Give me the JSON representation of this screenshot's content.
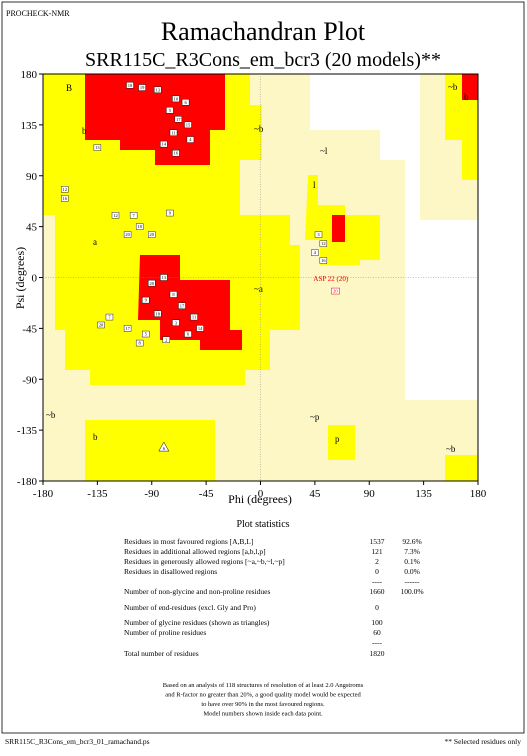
{
  "header": "PROCHECK-NMR",
  "chart_data": {
    "type": "scatter",
    "title": "Ramachandran Plot",
    "subtitle": "SRR115C_R3Cons_em_bcr3 (20 models)**",
    "x_label": "Phi (degrees)",
    "y_label": "Psi (degrees)",
    "xlim": [
      -180,
      180
    ],
    "ylim": [
      -180,
      180
    ],
    "xticks": [
      -180,
      -135,
      -90,
      -45,
      0,
      45,
      90,
      135,
      180
    ],
    "yticks": [
      -180,
      -135,
      -90,
      -45,
      0,
      45,
      90,
      135,
      180
    ],
    "x": [
      -108,
      -98,
      -85,
      -70,
      -62,
      -75,
      -68,
      -60,
      -72,
      -58,
      -80,
      -70,
      -135,
      -162,
      -162,
      -120,
      -105,
      -100,
      -90,
      -110,
      -75,
      -90,
      -80,
      -72,
      -65,
      -95,
      -85,
      -70,
      -55,
      -60,
      -78,
      -95,
      -50,
      -125,
      -132,
      -110,
      -100,
      48,
      52,
      45,
      52
    ],
    "y": [
      170,
      168,
      166,
      158,
      155,
      148,
      140,
      135,
      128,
      122,
      118,
      110,
      115,
      78,
      70,
      55,
      55,
      45,
      38,
      38,
      57,
      -5,
      0,
      -15,
      -25,
      -20,
      -32,
      -40,
      -35,
      -50,
      -55,
      -50,
      -45,
      -35,
      -42,
      -45,
      -58,
      38,
      30,
      22,
      15
    ],
    "point_labels": [
      "18",
      "19",
      "13",
      "10",
      "6",
      "5",
      "17",
      "15",
      "11",
      "4",
      "14",
      "16",
      "13",
      "12",
      "16",
      "12",
      "7",
      "18",
      "20",
      "20",
      "9",
      "20",
      "13",
      "8",
      "17",
      "9",
      "18",
      "3",
      "11",
      "6",
      "2",
      "5",
      "14",
      "7",
      "20",
      "17",
      "8",
      "3",
      "12",
      "4",
      "16"
    ],
    "glycine": {
      "x": [
        -80
      ],
      "y": [
        -150
      ],
      "labels": [
        "6"
      ]
    },
    "selected": {
      "x": [
        62
      ],
      "y": [
        -12
      ],
      "labels": [
        "20"
      ],
      "annotation": "ASP 22 (20)"
    },
    "region_labels": [
      "B",
      "b",
      "a",
      "~b",
      "~l",
      "l",
      "~a",
      "~b",
      "b",
      "~p",
      "p",
      "~b",
      "b",
      "~b"
    ]
  },
  "statistics": {
    "title": "Plot statistics",
    "rows": [
      [
        "Residues in most favoured regions  [A,B,L]",
        "1537",
        "92.6%"
      ],
      [
        "Residues in additional allowed regions  [a,b,l,p]",
        "121",
        "7.3%"
      ],
      [
        "Residues in generously allowed regions  [~a,~b,~l,~p]",
        "2",
        "0.1%"
      ],
      [
        "Residues in disallowed regions",
        "0",
        "0.0%"
      ],
      [
        "----",
        "------"
      ],
      [
        "Number of non-glycine and non-proline residues",
        "1660",
        "100.0%"
      ],
      [
        "Number of end-residues (excl. Gly and Pro)",
        "0"
      ],
      [
        "Number of glycine residues (shown as triangles)",
        "100"
      ],
      [
        "Number of proline residues",
        "60"
      ],
      [
        "----"
      ],
      [
        "Total number of residues",
        "1820"
      ]
    ]
  },
  "footnote": [
    "Based on an analysis of 118 structures of resolution of at least 2.0 Angstroms",
    "and R-factor no greater than 20%, a good quality model would be expected",
    "to have over 90% in the most favoured regions.",
    "Model numbers shown inside each data point."
  ],
  "footer": {
    "left": "SRR115C_R3Cons_em_bcr3_01_ramachand.ps",
    "right": "** Selected residues only"
  }
}
